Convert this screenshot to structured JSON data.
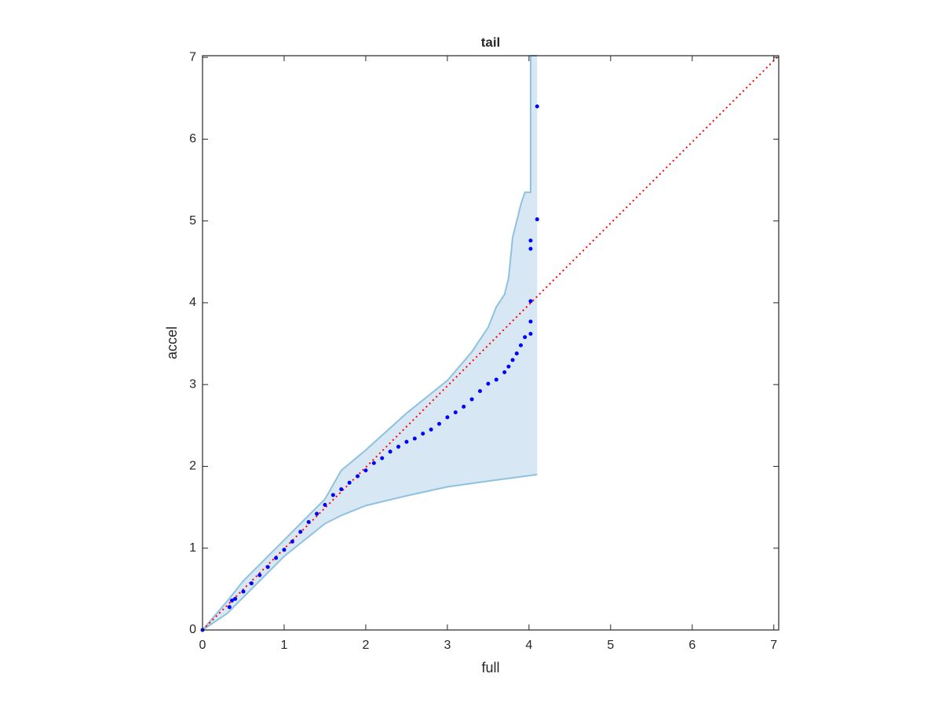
{
  "chart_data": {
    "type": "scatter",
    "title": "tail",
    "x_label": "full",
    "y_label": "accel",
    "xlim": [
      0,
      7.06
    ],
    "ylim": [
      0,
      7.02
    ],
    "xticks": [
      0,
      1,
      2,
      3,
      4,
      5,
      6,
      7
    ],
    "yticks": [
      0,
      1,
      2,
      3,
      4,
      5,
      6,
      7
    ],
    "points": {
      "color": "#0000ff",
      "x": [
        0,
        0.33,
        0.36,
        0.4,
        0.5,
        0.6,
        0.7,
        0.8,
        0.9,
        1.0,
        1.1,
        1.2,
        1.3,
        1.4,
        1.5,
        1.6,
        1.7,
        1.8,
        1.9,
        2.0,
        2.1,
        2.2,
        2.3,
        2.4,
        2.5,
        2.6,
        2.7,
        2.8,
        2.9,
        3.0,
        3.1,
        3.2,
        3.3,
        3.4,
        3.5,
        3.6,
        3.7,
        3.75,
        3.8,
        3.85,
        3.9,
        3.95,
        4.02,
        4.02,
        4.02,
        4.02,
        4.02,
        4.1,
        4.1
      ],
      "y": [
        0,
        0.28,
        0.36,
        0.38,
        0.47,
        0.57,
        0.67,
        0.77,
        0.88,
        0.98,
        1.08,
        1.2,
        1.32,
        1.42,
        1.53,
        1.65,
        1.72,
        1.8,
        1.88,
        1.95,
        2.04,
        2.1,
        2.18,
        2.24,
        2.3,
        2.34,
        2.4,
        2.45,
        2.52,
        2.6,
        2.66,
        2.73,
        2.82,
        2.92,
        3.01,
        3.06,
        3.15,
        3.22,
        3.3,
        3.38,
        3.48,
        3.58,
        3.62,
        3.77,
        4.02,
        4.66,
        4.76,
        5.02,
        6.4
      ]
    },
    "band": {
      "fill": "#d7e7f3",
      "line_color": "#8fc1e0",
      "upper_x": [
        0,
        0.3,
        0.5,
        1.0,
        1.5,
        1.7,
        2.0,
        2.5,
        3.0,
        3.3,
        3.5,
        3.6,
        3.7,
        3.75,
        3.8,
        3.9,
        3.95,
        4.02,
        4.02,
        4.1
      ],
      "upper_y": [
        0,
        0.35,
        0.6,
        1.1,
        1.6,
        1.95,
        2.2,
        2.65,
        3.05,
        3.4,
        3.7,
        3.95,
        4.1,
        4.3,
        4.8,
        5.2,
        5.35,
        5.35,
        7.02,
        7.02
      ],
      "lower_x": [
        0,
        0.3,
        0.5,
        1.0,
        1.5,
        1.7,
        2.0,
        2.5,
        3.0,
        3.5,
        4.1
      ],
      "lower_y": [
        0,
        0.2,
        0.4,
        0.9,
        1.3,
        1.4,
        1.52,
        1.64,
        1.75,
        1.82,
        1.9
      ]
    },
    "reference": {
      "color": "#ff0000",
      "x": [
        0,
        7.06
      ],
      "y": [
        0,
        7.02
      ]
    }
  }
}
